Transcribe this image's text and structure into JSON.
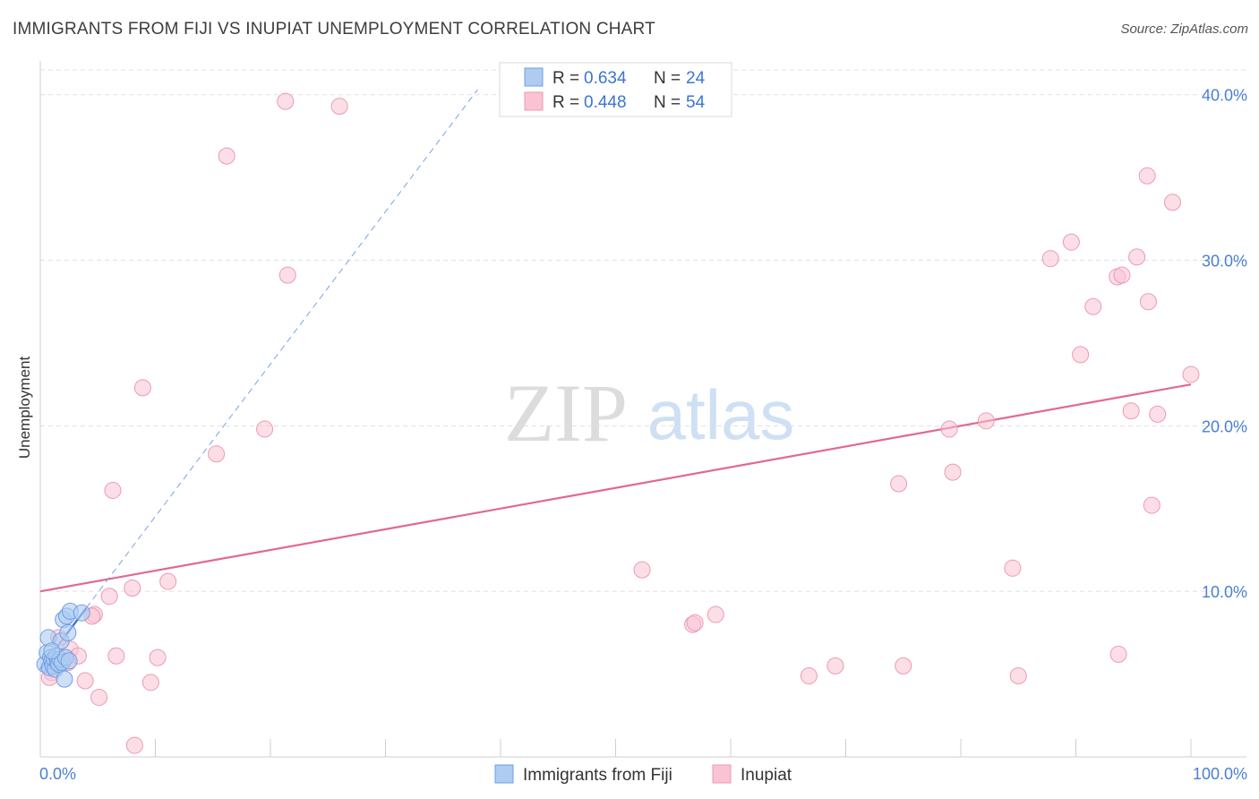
{
  "title": "IMMIGRANTS FROM FIJI VS INUPIAT UNEMPLOYMENT CORRELATION CHART",
  "source": "Source: ZipAtlas.com",
  "watermark": {
    "zip": "ZIP",
    "atlas": "atlas"
  },
  "legend": {
    "series": [
      {
        "r_label": "R = ",
        "r_value": "0.634",
        "n_label": "N = ",
        "n_value": "24"
      },
      {
        "r_label": "R = ",
        "r_value": "0.448",
        "n_label": "N = ",
        "n_value": "54"
      }
    ]
  },
  "chart_data": {
    "type": "scatter",
    "title": "IMMIGRANTS FROM FIJI VS INUPIAT UNEMPLOYMENT CORRELATION CHART",
    "xlabel": "",
    "ylabel": "Unemployment",
    "xlim": [
      0,
      100
    ],
    "ylim": [
      0,
      41.5
    ],
    "x_tick_labels": [
      "0.0%",
      "100.0%"
    ],
    "y_ticks": [
      10,
      20,
      30,
      40
    ],
    "y_tick_labels": [
      "10.0%",
      "20.0%",
      "30.0%",
      "40.0%"
    ],
    "grid": true,
    "colors": {
      "fiji_fill": "#aecbf2",
      "fiji_stroke": "#6f9fe3",
      "fiji_line": "#3a6fd6",
      "inupiat_fill": "#f9c3d3",
      "inupiat_stroke": "#ec9ab4",
      "inupiat_line": "#e0698f",
      "axis_text": "#4a7fd4",
      "grid": "#e0e0e0"
    },
    "series": [
      {
        "name": "Immigrants from Fiji",
        "r": 0.634,
        "n": 24,
        "trend": {
          "x": [
            0,
            4
          ],
          "y": [
            5.3,
            9.0
          ]
        },
        "trend_dashed": {
          "x": [
            4,
            38
          ],
          "y": [
            9.0,
            40.3
          ]
        },
        "points": [
          [
            0.4,
            5.6
          ],
          [
            0.6,
            6.3
          ],
          [
            0.7,
            7.2
          ],
          [
            0.8,
            5.4
          ],
          [
            0.9,
            6.0
          ],
          [
            1.0,
            5.8
          ],
          [
            1.1,
            5.5
          ],
          [
            1.2,
            5.9
          ],
          [
            1.3,
            5.3
          ],
          [
            1.4,
            6.1
          ],
          [
            1.5,
            5.7
          ],
          [
            1.6,
            5.6
          ],
          [
            1.7,
            5.9
          ],
          [
            1.8,
            7.0
          ],
          [
            1.9,
            5.7
          ],
          [
            2.0,
            8.3
          ],
          [
            2.1,
            4.7
          ],
          [
            2.2,
            6.0
          ],
          [
            2.3,
            8.5
          ],
          [
            2.4,
            7.5
          ],
          [
            2.5,
            5.8
          ],
          [
            2.6,
            8.8
          ],
          [
            3.6,
            8.7
          ],
          [
            1.0,
            6.4
          ]
        ]
      },
      {
        "name": "Inupiat",
        "r": 0.448,
        "n": 54,
        "trend": {
          "x": [
            0,
            100
          ],
          "y": [
            10.0,
            22.5
          ]
        },
        "points": [
          [
            21.3,
            39.6
          ],
          [
            26.0,
            39.3
          ],
          [
            16.2,
            36.3
          ],
          [
            21.5,
            29.1
          ],
          [
            8.9,
            22.3
          ],
          [
            19.5,
            19.8
          ],
          [
            15.3,
            18.3
          ],
          [
            6.3,
            16.1
          ],
          [
            11.1,
            10.6
          ],
          [
            8.0,
            10.2
          ],
          [
            6.0,
            9.7
          ],
          [
            4.7,
            8.6
          ],
          [
            4.5,
            8.5
          ],
          [
            1.6,
            7.2
          ],
          [
            2.2,
            6.0
          ],
          [
            2.6,
            6.5
          ],
          [
            3.3,
            6.1
          ],
          [
            6.6,
            6.1
          ],
          [
            10.2,
            6.0
          ],
          [
            2.4,
            5.7
          ],
          [
            1.0,
            5.1
          ],
          [
            0.8,
            4.8
          ],
          [
            3.9,
            4.6
          ],
          [
            9.6,
            4.5
          ],
          [
            5.1,
            3.6
          ],
          [
            8.2,
            0.7
          ],
          [
            52.3,
            11.3
          ],
          [
            56.7,
            8.0
          ],
          [
            56.9,
            8.1
          ],
          [
            58.7,
            8.6
          ],
          [
            66.8,
            4.9
          ],
          [
            69.1,
            5.5
          ],
          [
            75.0,
            5.5
          ],
          [
            74.6,
            16.5
          ],
          [
            79.0,
            19.8
          ],
          [
            79.3,
            17.2
          ],
          [
            82.2,
            20.3
          ],
          [
            84.5,
            11.4
          ],
          [
            85.0,
            4.9
          ],
          [
            87.8,
            30.1
          ],
          [
            89.6,
            31.1
          ],
          [
            90.4,
            24.3
          ],
          [
            91.5,
            27.2
          ],
          [
            93.6,
            29.0
          ],
          [
            94.0,
            29.1
          ],
          [
            93.7,
            6.2
          ],
          [
            94.8,
            20.9
          ],
          [
            95.3,
            30.2
          ],
          [
            96.2,
            35.1
          ],
          [
            96.3,
            27.5
          ],
          [
            96.6,
            15.2
          ],
          [
            97.1,
            20.7
          ],
          [
            98.4,
            33.5
          ],
          [
            100.0,
            23.1
          ]
        ]
      }
    ]
  }
}
